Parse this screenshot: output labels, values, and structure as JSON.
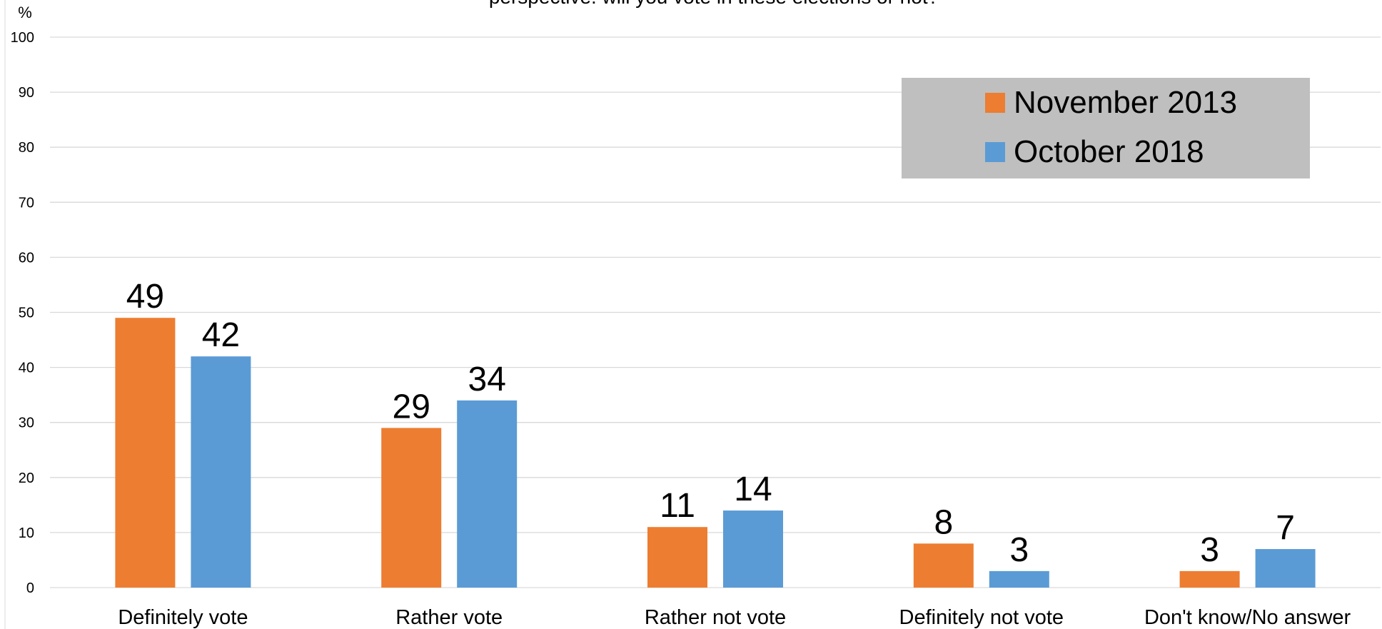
{
  "chart_data": {
    "type": "bar",
    "title": "perspective: will you vote in these elections or not?",
    "ylabel": "%",
    "xlabel": "",
    "ylim": [
      0,
      100
    ],
    "yticks": [
      0,
      10,
      20,
      30,
      40,
      50,
      60,
      70,
      80,
      90,
      100
    ],
    "grid": true,
    "legend_position": "top-right",
    "categories": [
      "Definitely vote",
      "Rather vote",
      "Rather not vote",
      "Definitely not vote",
      "Don't know/No answer"
    ],
    "series": [
      {
        "name": "November 2013",
        "color": "#ED7D31",
        "values": [
          49,
          29,
          11,
          8,
          3
        ]
      },
      {
        "name": "October 2018",
        "color": "#5B9BD5",
        "values": [
          42,
          34,
          14,
          3,
          7
        ]
      }
    ]
  }
}
